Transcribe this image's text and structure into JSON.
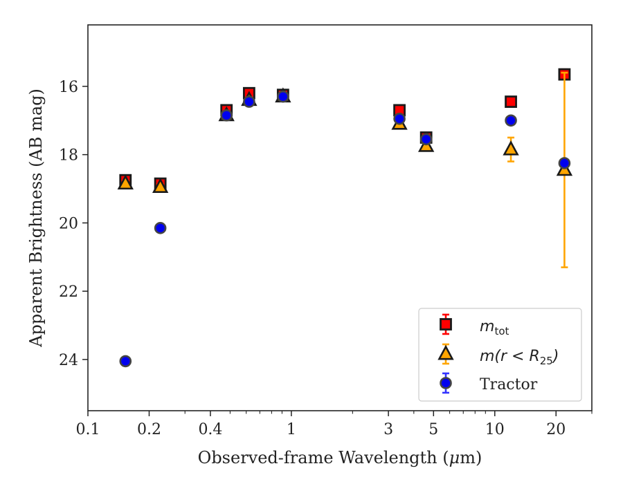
{
  "chart_data": {
    "type": "scatter",
    "xlabel_prefix": "Observed-frame Wavelength (",
    "xlabel_mu": "μ",
    "xlabel_suffix": "m)",
    "ylabel": "Apparent Brightness (AB mag)",
    "xscale": "log",
    "xlim": [
      0.1,
      30
    ],
    "ylim": [
      25.5,
      14.2
    ],
    "y_inverted": true,
    "grid": false,
    "legend_position": "bottom-right",
    "x_ticks": [
      0.1,
      0.2,
      0.4,
      1,
      3,
      5,
      10,
      20
    ],
    "x_tick_labels": [
      "0.1",
      "0.2",
      "0.4",
      "1",
      "3",
      "5",
      "10",
      "20"
    ],
    "y_ticks": [
      16,
      18,
      20,
      22,
      24
    ],
    "y_tick_labels": [
      "16",
      "18",
      "20",
      "22",
      "24"
    ],
    "series": [
      {
        "name": "m_tot",
        "legend_main": "m",
        "legend_sub": "tot",
        "marker": "square",
        "color": "#ff0000",
        "edge": "#1a1a1a",
        "errcolor": "#ff0000",
        "points": [
          {
            "x": 0.153,
            "y": 18.75,
            "err": 0.08
          },
          {
            "x": 0.227,
            "y": 18.85,
            "err": 0.08
          },
          {
            "x": 0.48,
            "y": 16.7,
            "err": 0.08
          },
          {
            "x": 0.62,
            "y": 16.2,
            "err": 0.08
          },
          {
            "x": 0.91,
            "y": 16.25,
            "err": 0.08
          },
          {
            "x": 3.4,
            "y": 16.7,
            "err": 0.08
          },
          {
            "x": 4.6,
            "y": 17.5,
            "err": 0.08
          },
          {
            "x": 12.0,
            "y": 16.45,
            "err": 0.08
          },
          {
            "x": 22.0,
            "y": 15.65,
            "err": 0.15
          }
        ]
      },
      {
        "name": "m(r < R_25)",
        "legend_main": "m(r < R",
        "legend_sub": "25",
        "legend_end": ")",
        "marker": "triangle",
        "color": "#ffa500",
        "edge": "#1a1a1a",
        "errcolor": "#ffa500",
        "points": [
          {
            "x": 0.153,
            "y": 18.85,
            "err": 0.08
          },
          {
            "x": 0.227,
            "y": 18.95,
            "err": 0.08
          },
          {
            "x": 0.48,
            "y": 16.85,
            "err": 0.08
          },
          {
            "x": 0.62,
            "y": 16.4,
            "err": 0.08
          },
          {
            "x": 0.91,
            "y": 16.3,
            "err": 0.08
          },
          {
            "x": 3.4,
            "y": 17.1,
            "err": 0.08
          },
          {
            "x": 4.6,
            "y": 17.75,
            "err": 0.08
          },
          {
            "x": 12.0,
            "y": 17.85,
            "err": 0.35
          },
          {
            "x": 22.0,
            "y": 18.45,
            "err": 2.85
          }
        ]
      },
      {
        "name": "Tractor",
        "legend_main": "Tractor",
        "marker": "circle",
        "color": "#0000ee",
        "edge": "#444444",
        "errcolor": "#3333ff",
        "points": [
          {
            "x": 0.153,
            "y": 24.05,
            "err": 0.05
          },
          {
            "x": 0.227,
            "y": 20.15,
            "err": 0.05
          },
          {
            "x": 0.48,
            "y": 16.85,
            "err": 0.05
          },
          {
            "x": 0.62,
            "y": 16.45,
            "err": 0.05
          },
          {
            "x": 0.91,
            "y": 16.3,
            "err": 0.05
          },
          {
            "x": 3.4,
            "y": 16.95,
            "err": 0.05
          },
          {
            "x": 4.6,
            "y": 17.55,
            "err": 0.05
          },
          {
            "x": 12.0,
            "y": 17.0,
            "err": 0.05
          },
          {
            "x": 22.0,
            "y": 18.25,
            "err": 0.05
          }
        ]
      }
    ]
  }
}
